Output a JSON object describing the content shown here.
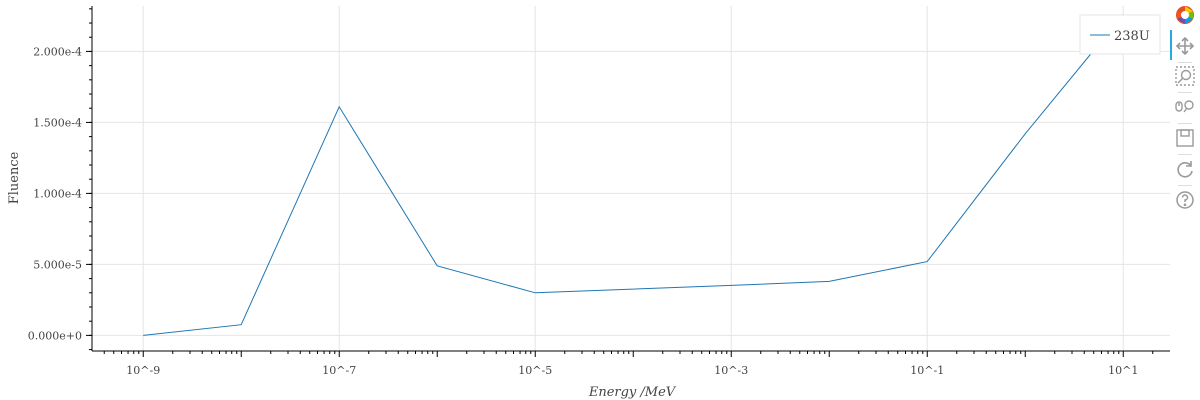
{
  "chart_data": {
    "type": "line",
    "xlabel": "Energy /MeV",
    "ylabel": "Fluence",
    "x_scale": "log",
    "xlim": [
      3e-10,
      30
    ],
    "ylim": [
      -1.1e-05,
      0.000232
    ],
    "grid": true,
    "legend_position": "top-right",
    "x_ticks": [
      1e-09,
      1e-07,
      1e-05,
      0.001,
      0.1,
      10
    ],
    "x_tick_labels": [
      "10^-9",
      "10^-7",
      "10^-5",
      "10^-3",
      "10^-1",
      "10^1"
    ],
    "y_ticks": [
      0,
      5e-05,
      0.0001,
      0.00015,
      0.0002
    ],
    "y_tick_labels": [
      "0.000e+0",
      "5.000e-5",
      "1.000e-4",
      "1.500e-4",
      "2.000e-4"
    ],
    "series": [
      {
        "name": "238U",
        "color": "#1f77b4",
        "x": [
          1e-09,
          1e-08,
          1e-07,
          1e-06,
          1e-05,
          0.001,
          0.01,
          0.1,
          1,
          10
        ],
        "y": [
          0.0,
          7.5e-06,
          0.000161,
          4.9e-05,
          3e-05,
          3.52e-05,
          3.8e-05,
          5.2e-05,
          0.000142,
          0.000226
        ]
      }
    ]
  },
  "toolbar": {
    "logo": "bokeh-logo-icon",
    "tools": [
      "pan-icon",
      "box-zoom-icon",
      "wheel-zoom-icon",
      "save-icon",
      "reset-icon",
      "help-icon"
    ]
  }
}
